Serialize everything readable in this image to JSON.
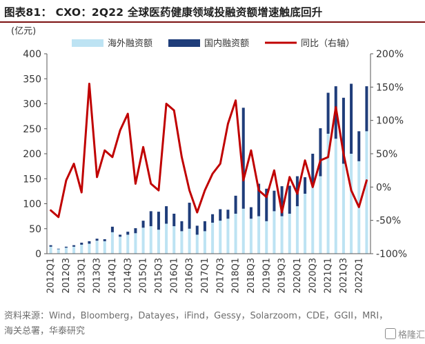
{
  "header": {
    "title": "图表81： CXO：2Q22 全球医药健康领域投融资额增速触底回升"
  },
  "source": {
    "text": "资料来源：Wind，Bloomberg，Datayes，iFind，Gessy，Solarzoom，CDE，GGII，MRI，海关总署，华泰研究"
  },
  "watermark": {
    "text": "格隆汇"
  },
  "colors": {
    "overseas": "#bde3f3",
    "domestic": "#1f3d7a",
    "yoy": "#c00000",
    "rule": "#7b1010"
  },
  "chart_data": {
    "type": "bar",
    "stacked": true,
    "y_unit": "(亿元)",
    "ylim": [
      0,
      400
    ],
    "y_ticks": [
      0,
      50,
      100,
      150,
      200,
      250,
      300,
      350,
      400
    ],
    "y2lim": [
      -100,
      200
    ],
    "y2_ticks": [
      "-100%",
      "-50%",
      "0%",
      "50%",
      "100%",
      "150%",
      "200%"
    ],
    "legend": [
      "海外融资额",
      "国内融资额",
      "同比（右轴）"
    ],
    "legend_position": "top",
    "categories": [
      "2012Q1",
      "2012Q2",
      "2012Q3",
      "2012Q4",
      "2013Q1",
      "2013Q2",
      "2013Q3",
      "2013Q4",
      "2014Q1",
      "2014Q2",
      "2014Q3",
      "2014Q4",
      "2015Q1",
      "2015Q2",
      "2015Q3",
      "2015Q4",
      "2016Q1",
      "2016Q2",
      "2016Q3",
      "2016Q4",
      "2017Q1",
      "2017Q2",
      "2017Q3",
      "2017Q4",
      "2018Q1",
      "2018Q2",
      "2018Q3",
      "2018Q4",
      "2019Q1",
      "2019Q2",
      "2019Q3",
      "2019Q4",
      "2020Q1",
      "2020Q2",
      "2020Q3",
      "2020Q4",
      "2021Q1",
      "2021Q2",
      "2021Q3",
      "2021Q4",
      "2022Q1",
      "2022Q2"
    ],
    "x_tick_labels": [
      "2012Q1",
      "2012Q3",
      "2013Q1",
      "2013Q3",
      "2014Q1",
      "2014Q3",
      "2015Q1",
      "2015Q3",
      "2016Q1",
      "2016Q3",
      "2017Q1",
      "2017Q3",
      "2018Q1",
      "2018Q3",
      "2019Q1",
      "2019Q3",
      "2020Q1",
      "2020Q3",
      "2021Q1",
      "2021Q3",
      "2022Q1"
    ],
    "series": [
      {
        "name": "海外融资额",
        "kind": "bar",
        "values": [
          14,
          9,
          12,
          14,
          18,
          20,
          26,
          25,
          43,
          34,
          38,
          41,
          52,
          55,
          48,
          60,
          55,
          45,
          50,
          38,
          45,
          62,
          66,
          70,
          80,
          90,
          70,
          75,
          65,
          85,
          75,
          80,
          95,
          120,
          140,
          155,
          240,
          230,
          180,
          200,
          185,
          245
        ]
      },
      {
        "name": "国内融资额",
        "kind": "bar",
        "values": [
          3,
          1,
          2,
          3,
          4,
          5,
          4,
          4,
          11,
          4,
          6,
          10,
          14,
          30,
          36,
          35,
          25,
          20,
          52,
          18,
          20,
          17,
          23,
          18,
          36,
          202,
          23,
          65,
          65,
          41,
          60,
          56,
          60,
          33,
          60,
          96,
          82,
          105,
          132,
          140,
          60,
          90
        ]
      },
      {
        "name": "同比（右轴）",
        "kind": "line",
        "axis": "right",
        "values": [
          -35,
          -45,
          10,
          35,
          -8,
          155,
          15,
          55,
          45,
          85,
          110,
          5,
          60,
          5,
          -5,
          125,
          115,
          45,
          -5,
          -38,
          -5,
          20,
          35,
          95,
          130,
          10,
          55,
          -5,
          -15,
          25,
          -38,
          15,
          -10,
          40,
          0,
          40,
          45,
          120,
          50,
          -5,
          -30,
          10
        ]
      }
    ]
  }
}
